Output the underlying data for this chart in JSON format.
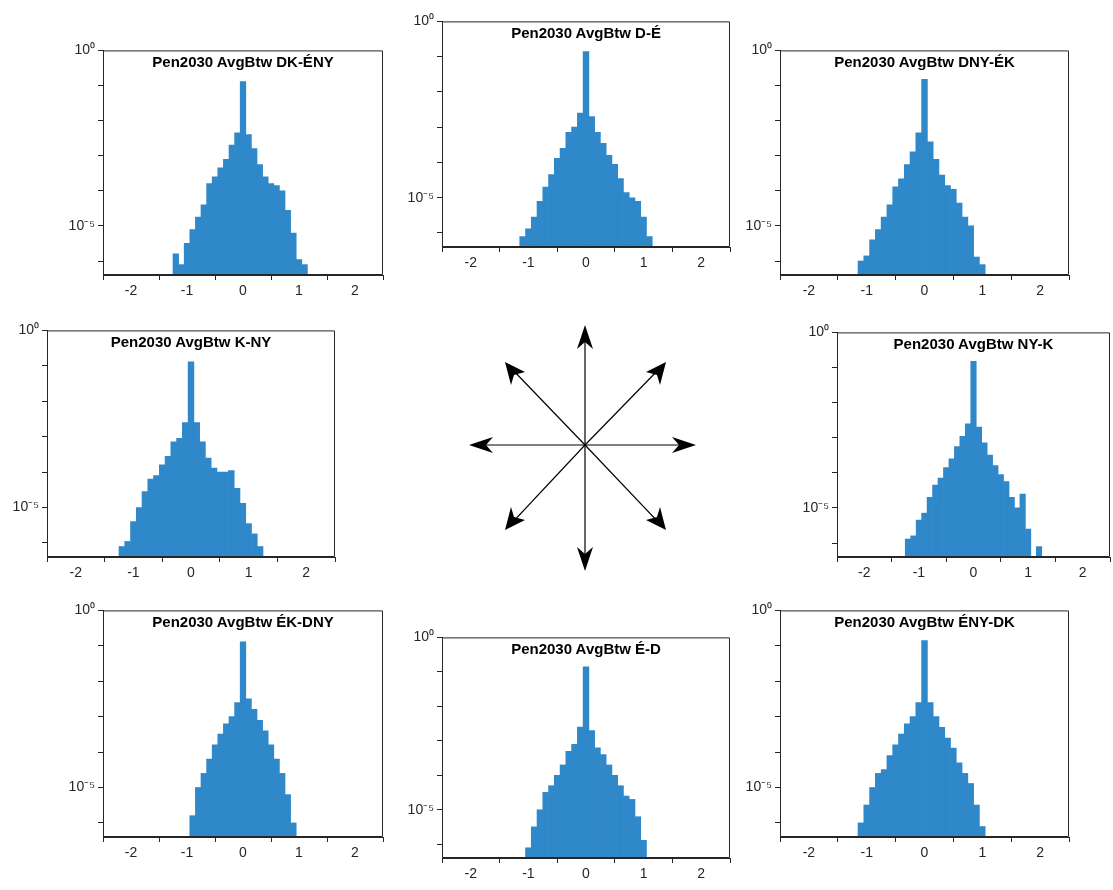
{
  "chart_data": [
    {
      "type": "histogram",
      "title": "Pen2030 AvgBtw DK-ÉNY",
      "color": "#2f88c9",
      "log": true,
      "xlim": [
        -2.5,
        2.5
      ],
      "xticks": [
        -2,
        -1,
        0,
        1,
        2
      ],
      "ylim": [
        4e-07,
        1
      ],
      "yticks": [
        {
          "value": 1,
          "label": "10⁰"
        },
        {
          "value": 0.1,
          "label": null
        },
        {
          "value": 0.01,
          "label": null
        },
        {
          "value": 0.001,
          "label": null
        },
        {
          "value": 0.0001,
          "label": null
        },
        {
          "value": 1e-05,
          "label": "10⁻⁵"
        },
        {
          "value": 1e-06,
          "label": null
        }
      ],
      "bins": [
        -1.25,
        -1.15,
        -1.05,
        -0.95,
        -0.85,
        -0.75,
        -0.65,
        -0.55,
        -0.45,
        -0.35,
        -0.25,
        -0.15,
        -0.05,
        0.05,
        0.15,
        0.25,
        0.35,
        0.45,
        0.55,
        0.65,
        0.75,
        0.85,
        0.95,
        1.05,
        1.15,
        1.25
      ],
      "values": [
        1.6e-06,
        7.9e-07,
        3.2e-06,
        7.9e-06,
        1.8e-05,
        4e-05,
        0.00016,
        0.00025,
        0.00045,
        0.00079,
        0.002,
        0.0045,
        0.13,
        0.004,
        0.0016,
        0.00056,
        0.00025,
        0.00016,
        0.00014,
        0.0001,
        2.8e-05,
        6.3e-06,
        1.1e-06,
        7.9e-07,
        null
      ]
    },
    {
      "type": "histogram",
      "title": "Pen2030 AvgBtw D-É",
      "color": "#2f88c9",
      "log": true,
      "xlim": [
        -2.5,
        2.5
      ],
      "xticks": [
        -2,
        -1,
        0,
        1,
        2
      ],
      "ylim": [
        4e-07,
        1
      ],
      "yticks": [
        {
          "value": 1,
          "label": "10⁰"
        },
        {
          "value": 0.1,
          "label": null
        },
        {
          "value": 0.01,
          "label": null
        },
        {
          "value": 0.001,
          "label": null
        },
        {
          "value": 0.0001,
          "label": null
        },
        {
          "value": 1e-05,
          "label": "10⁻⁵"
        },
        {
          "value": 1e-06,
          "label": null
        }
      ],
      "bins": [
        -1.25,
        -1.15,
        -1.05,
        -0.95,
        -0.85,
        -0.75,
        -0.65,
        -0.55,
        -0.45,
        -0.35,
        -0.25,
        -0.15,
        -0.05,
        0.05,
        0.15,
        0.25,
        0.35,
        0.45,
        0.55,
        0.65,
        0.75,
        0.85,
        0.95,
        1.05,
        1.15,
        1.25
      ],
      "values": [
        null,
        7.9e-07,
        1.3e-06,
        2.8e-06,
        7.9e-06,
        2e-05,
        4.5e-05,
        0.00013,
        0.00025,
        0.00071,
        0.001,
        0.0025,
        0.14,
        0.002,
        0.00071,
        0.00035,
        0.00016,
        8.9e-05,
        3.5e-05,
        1.4e-05,
        1e-05,
        7.9e-06,
        2.8e-06,
        7.9e-07,
        null
      ]
    },
    {
      "type": "histogram",
      "title": "Pen2030 AvgBtw DNY-ÉK",
      "color": "#2f88c9",
      "log": true,
      "xlim": [
        -2.5,
        2.5
      ],
      "xticks": [
        -2,
        -1,
        0,
        1,
        2
      ],
      "ylim": [
        4e-07,
        1
      ],
      "yticks": [
        {
          "value": 1,
          "label": "10⁰"
        },
        {
          "value": 0.1,
          "label": null
        },
        {
          "value": 0.01,
          "label": null
        },
        {
          "value": 0.001,
          "label": null
        },
        {
          "value": 0.0001,
          "label": null
        },
        {
          "value": 1e-05,
          "label": "10⁻⁵"
        },
        {
          "value": 1e-06,
          "label": null
        }
      ],
      "bins": [
        -1.25,
        -1.15,
        -1.05,
        -0.95,
        -0.85,
        -0.75,
        -0.65,
        -0.55,
        -0.45,
        -0.35,
        -0.25,
        -0.15,
        -0.05,
        0.05,
        0.15,
        0.25,
        0.35,
        0.45,
        0.55,
        0.65,
        0.75,
        0.85,
        0.95,
        1.05,
        1.15,
        1.25
      ],
      "values": [
        null,
        1e-06,
        1.4e-06,
        4e-06,
        7.9e-06,
        1.8e-05,
        4e-05,
        0.00013,
        0.00022,
        0.00056,
        0.0013,
        0.0045,
        0.15,
        0.0025,
        0.00079,
        0.00028,
        0.00014,
        0.00011,
        4.5e-05,
        1.8e-05,
        1e-05,
        1.3e-06,
        7.9e-07,
        null,
        null
      ]
    },
    {
      "type": "histogram",
      "title": "Pen2030 AvgBtw K-NY",
      "color": "#2f88c9",
      "log": true,
      "xlim": [
        -2.5,
        2.5
      ],
      "xticks": [
        -2,
        -1,
        0,
        1,
        2
      ],
      "ylim": [
        4e-07,
        1
      ],
      "yticks": [
        {
          "value": 1,
          "label": "10⁰"
        },
        {
          "value": 0.1,
          "label": null
        },
        {
          "value": 0.01,
          "label": null
        },
        {
          "value": 0.001,
          "label": null
        },
        {
          "value": 0.0001,
          "label": null
        },
        {
          "value": 1e-05,
          "label": "10⁻⁵"
        },
        {
          "value": 1e-06,
          "label": null
        }
      ],
      "bins": [
        -1.25,
        -1.15,
        -1.05,
        -0.95,
        -0.85,
        -0.75,
        -0.65,
        -0.55,
        -0.45,
        -0.35,
        -0.25,
        -0.15,
        -0.05,
        0.05,
        0.15,
        0.25,
        0.35,
        0.45,
        0.55,
        0.65,
        0.75,
        0.85,
        0.95,
        1.05,
        1.15,
        1.25
      ],
      "values": [
        7.9e-07,
        1.1e-06,
        4e-06,
        1e-05,
        2.8e-05,
        6.3e-05,
        7.9e-05,
        0.00016,
        0.00028,
        0.00071,
        0.00089,
        0.0025,
        0.13,
        0.0025,
        0.00071,
        0.00025,
        0.00013,
        0.0001,
        0.0001,
        0.00011,
        3.5e-05,
        1.3e-05,
        3.5e-06,
        1.8e-06,
        7.9e-07
      ]
    },
    {
      "type": "histogram",
      "title": "Pen2030 AvgBtw NY-K",
      "color": "#2f88c9",
      "log": true,
      "xlim": [
        -2.5,
        2.5
      ],
      "xticks": [
        -2,
        -1,
        0,
        1,
        2
      ],
      "ylim": [
        4e-07,
        1
      ],
      "yticks": [
        {
          "value": 1,
          "label": "10⁰"
        },
        {
          "value": 0.1,
          "label": null
        },
        {
          "value": 0.01,
          "label": null
        },
        {
          "value": 0.001,
          "label": null
        },
        {
          "value": 0.0001,
          "label": null
        },
        {
          "value": 1e-05,
          "label": "10⁻⁵"
        },
        {
          "value": 1e-06,
          "label": null
        }
      ],
      "bins": [
        -1.25,
        -1.15,
        -1.05,
        -0.95,
        -0.85,
        -0.75,
        -0.65,
        -0.55,
        -0.45,
        -0.35,
        -0.25,
        -0.15,
        -0.05,
        0.05,
        0.15,
        0.25,
        0.35,
        0.45,
        0.55,
        0.65,
        0.75,
        0.85,
        0.95,
        1.05,
        1.15,
        1.25
      ],
      "values": [
        1.3e-06,
        1.6e-06,
        4.5e-06,
        7.1e-06,
        2e-05,
        4.5e-05,
        7.1e-05,
        0.00014,
        0.00025,
        0.00056,
        0.0011,
        0.0025,
        0.15,
        0.002,
        0.00071,
        0.00032,
        0.00016,
        8.9e-05,
        5.6e-05,
        2e-05,
        1e-05,
        2.5e-05,
        2.5e-06,
        null,
        7.9e-07
      ]
    },
    {
      "type": "histogram",
      "title": "Pen2030 AvgBtw ÉK-DNY",
      "color": "#2f88c9",
      "log": true,
      "xlim": [
        -2.5,
        2.5
      ],
      "xticks": [
        -2,
        -1,
        0,
        1,
        2
      ],
      "ylim": [
        4e-07,
        1
      ],
      "yticks": [
        {
          "value": 1,
          "label": "10⁰"
        },
        {
          "value": 0.1,
          "label": null
        },
        {
          "value": 0.01,
          "label": null
        },
        {
          "value": 0.001,
          "label": null
        },
        {
          "value": 0.0001,
          "label": null
        },
        {
          "value": 1e-05,
          "label": "10⁻⁵"
        },
        {
          "value": 1e-06,
          "label": null
        }
      ],
      "bins": [
        -1.25,
        -1.15,
        -1.05,
        -0.95,
        -0.85,
        -0.75,
        -0.65,
        -0.55,
        -0.45,
        -0.35,
        -0.25,
        -0.15,
        -0.05,
        0.05,
        0.15,
        0.25,
        0.35,
        0.45,
        0.55,
        0.65,
        0.75,
        0.85,
        0.95,
        1.05,
        1.15,
        1.25
      ],
      "values": [
        null,
        null,
        null,
        1.6e-06,
        1e-05,
        2.5e-05,
        6.3e-05,
        0.00016,
        0.00032,
        0.00063,
        0.001,
        0.0025,
        0.13,
        0.0032,
        0.0016,
        0.00079,
        0.0004,
        0.00016,
        6.3e-05,
        2.5e-05,
        6.3e-06,
        1e-06,
        null,
        null,
        null
      ]
    },
    {
      "type": "histogram",
      "title": "Pen2030 AvgBtw É-D",
      "color": "#2f88c9",
      "log": true,
      "xlim": [
        -2.5,
        2.5
      ],
      "xticks": [
        -2,
        -1,
        0,
        1,
        2
      ],
      "ylim": [
        4e-07,
        1
      ],
      "yticks": [
        {
          "value": 1,
          "label": "10⁰"
        },
        {
          "value": 0.1,
          "label": null
        },
        {
          "value": 0.01,
          "label": null
        },
        {
          "value": 0.001,
          "label": null
        },
        {
          "value": 0.0001,
          "label": null
        },
        {
          "value": 1e-05,
          "label": "10⁻⁵"
        },
        {
          "value": 1e-06,
          "label": null
        }
      ],
      "bins": [
        -1.25,
        -1.15,
        -1.05,
        -0.95,
        -0.85,
        -0.75,
        -0.65,
        -0.55,
        -0.45,
        -0.35,
        -0.25,
        -0.15,
        -0.05,
        0.05,
        0.15,
        0.25,
        0.35,
        0.45,
        0.55,
        0.65,
        0.75,
        0.85,
        0.95,
        1.05,
        1.15,
        1.25
      ],
      "values": [
        null,
        null,
        7.9e-07,
        3.2e-06,
        1e-05,
        3.2e-05,
        5e-05,
        0.0001,
        0.0002,
        0.0005,
        0.00079,
        0.0025,
        0.14,
        0.002,
        0.00063,
        0.0004,
        0.0002,
        0.0001,
        5e-05,
        2.5e-05,
        2e-05,
        6.3e-06,
        1.3e-06,
        null,
        null
      ]
    },
    {
      "type": "histogram",
      "title": "Pen2030 AvgBtw ÉNY-DK",
      "color": "#2f88c9",
      "log": true,
      "xlim": [
        -2.5,
        2.5
      ],
      "xticks": [
        -2,
        -1,
        0,
        1,
        2
      ],
      "ylim": [
        4e-07,
        1
      ],
      "yticks": [
        {
          "value": 1,
          "label": "10⁰"
        },
        {
          "value": 0.1,
          "label": null
        },
        {
          "value": 0.01,
          "label": null
        },
        {
          "value": 0.001,
          "label": null
        },
        {
          "value": 0.0001,
          "label": null
        },
        {
          "value": 1e-05,
          "label": "10⁻⁵"
        },
        {
          "value": 1e-06,
          "label": null
        }
      ],
      "bins": [
        -1.25,
        -1.15,
        -1.05,
        -0.95,
        -0.85,
        -0.75,
        -0.65,
        -0.55,
        -0.45,
        -0.35,
        -0.25,
        -0.15,
        -0.05,
        0.05,
        0.15,
        0.25,
        0.35,
        0.45,
        0.55,
        0.65,
        0.75,
        0.85,
        0.95,
        1.05,
        1.15,
        1.25
      ],
      "values": [
        null,
        1e-06,
        3.2e-06,
        1e-05,
        2.5e-05,
        3.2e-05,
        7.9e-05,
        0.00016,
        0.00032,
        0.00063,
        0.001,
        0.0025,
        0.14,
        0.0025,
        0.001,
        0.0005,
        0.00025,
        0.00013,
        5e-05,
        2.5e-05,
        1.3e-05,
        3.2e-06,
        7.9e-07,
        null,
        null
      ]
    }
  ]
}
